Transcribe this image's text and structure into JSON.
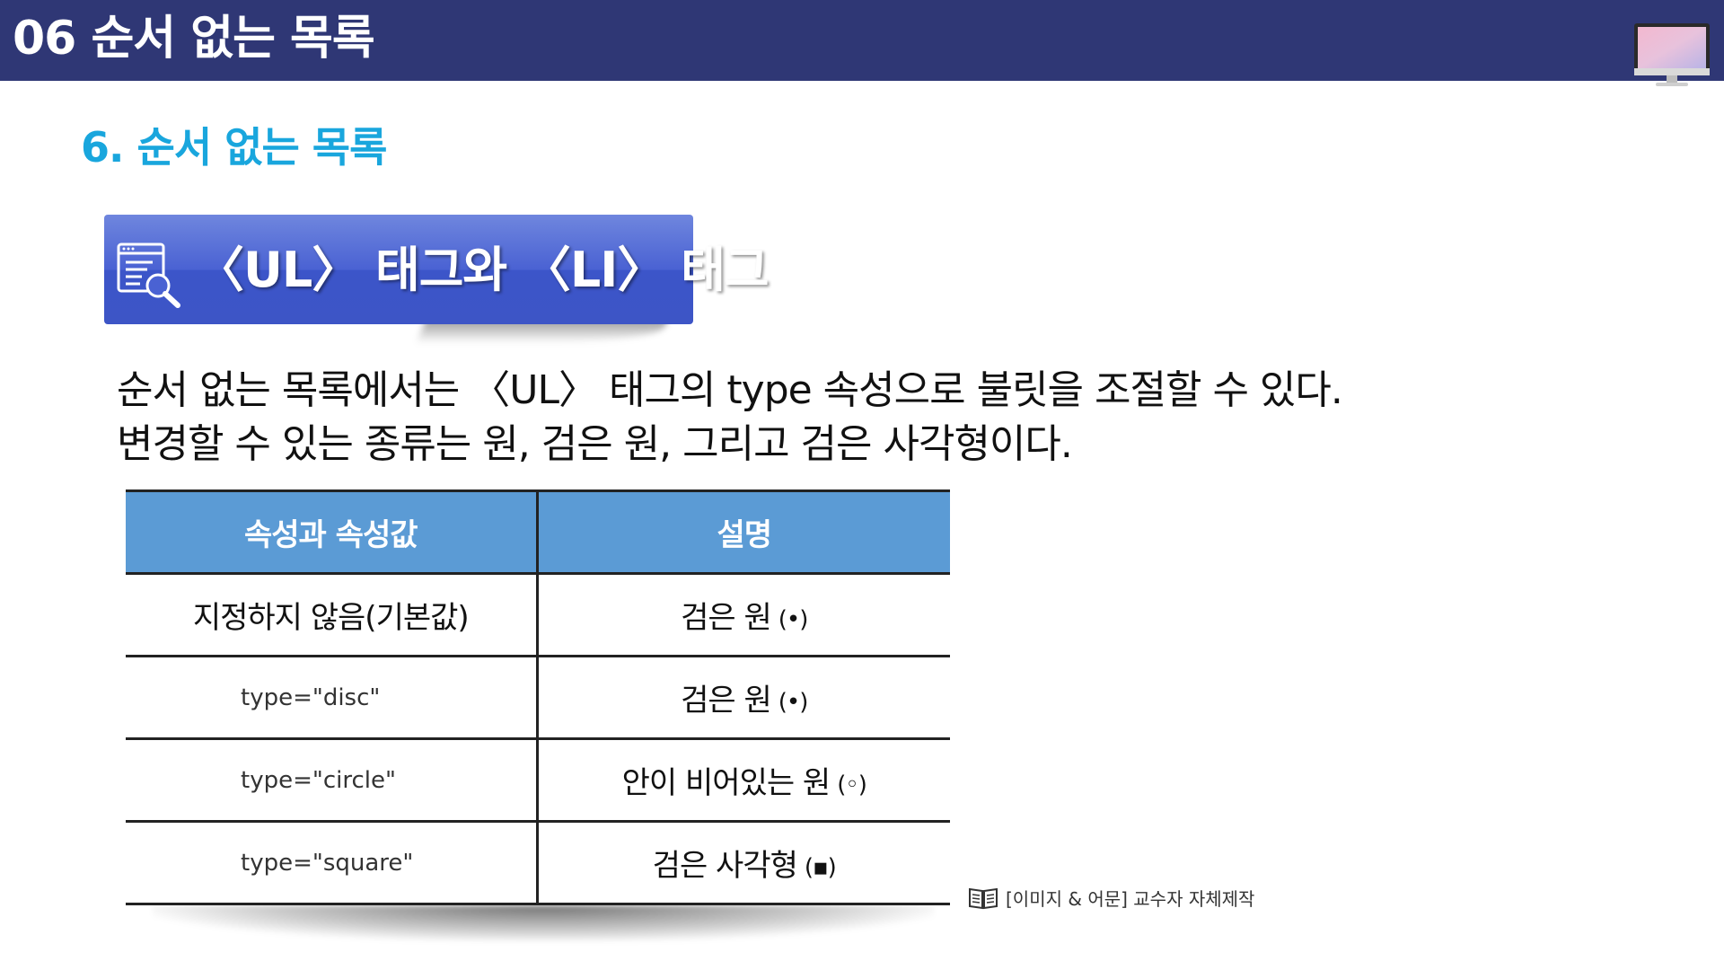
{
  "header": {
    "title": "06 순서 없는 목록",
    "icon": "monitor-icon",
    "background_color": "#2f3775"
  },
  "section": {
    "title": "6. 순서 없는 목록",
    "color": "#19a6dd"
  },
  "banner": {
    "icon": "document-search-icon",
    "text": "〈UL〉 태그와 〈LI〉 태그",
    "color": "#4a62d3"
  },
  "description": {
    "line1": "순서 없는 목록에서는 〈UL〉 태그의 type 속성으로 불릿을 조절할 수 있다.",
    "line2": "변경할 수 있는 종류는 원, 검은 원, 그리고 검은 사각형이다."
  },
  "table": {
    "header_color": "#5b9bd5",
    "columns": [
      "속성과 속성값",
      "설명"
    ],
    "rows": [
      {
        "attribute": "지정하지 않음(기본값)",
        "description": "검은 원",
        "symbol": "(•)"
      },
      {
        "attribute": "type=\"disc\"",
        "description": "검은 원",
        "symbol": "(•)"
      },
      {
        "attribute": "type=\"circle\"",
        "description": "안이 비어있는 원",
        "symbol": "(◦)"
      },
      {
        "attribute": "type=\"square\"",
        "description": "검은 사각형",
        "symbol": "(▪)"
      }
    ]
  },
  "credit": {
    "icon": "book-icon",
    "text": "[이미지 & 어문] 교수자 자체제작"
  }
}
